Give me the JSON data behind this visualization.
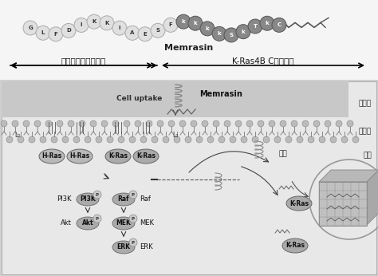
{
  "title": "Memrasin",
  "peptide_sequence_light": [
    "G",
    "L",
    "F",
    "D",
    "I",
    "K",
    "K",
    "I",
    "A",
    "E",
    "S",
    "F"
  ],
  "peptide_sequence_dark": [
    "k",
    "k",
    "k",
    "k",
    "S",
    "k",
    "T",
    "k",
    "C"
  ],
  "label_lysosome": "溶酶体释放促进序列",
  "label_kras": "K-Ras4B C末端序列",
  "label_cell_uptake": "Cell uptake",
  "label_memrasin": "Memrasin",
  "label_outside": "细胞外",
  "label_membrane": "细胞膜",
  "label_cytoplasm": "胞质",
  "label_aggregate": "聚集",
  "labels_signaling": [
    "PI3K",
    "Akt",
    "Raf",
    "MEK",
    "ERK"
  ],
  "label_kras_protein": "K-Ras",
  "bg_top": "#ffffff",
  "bg_bottom": "#d8d8d8",
  "membrane_color": "#b0b0b0",
  "dark_bead_color": "#888888",
  "light_bead_color": "#e0e0e0",
  "protein_color": "#aaaaaa"
}
